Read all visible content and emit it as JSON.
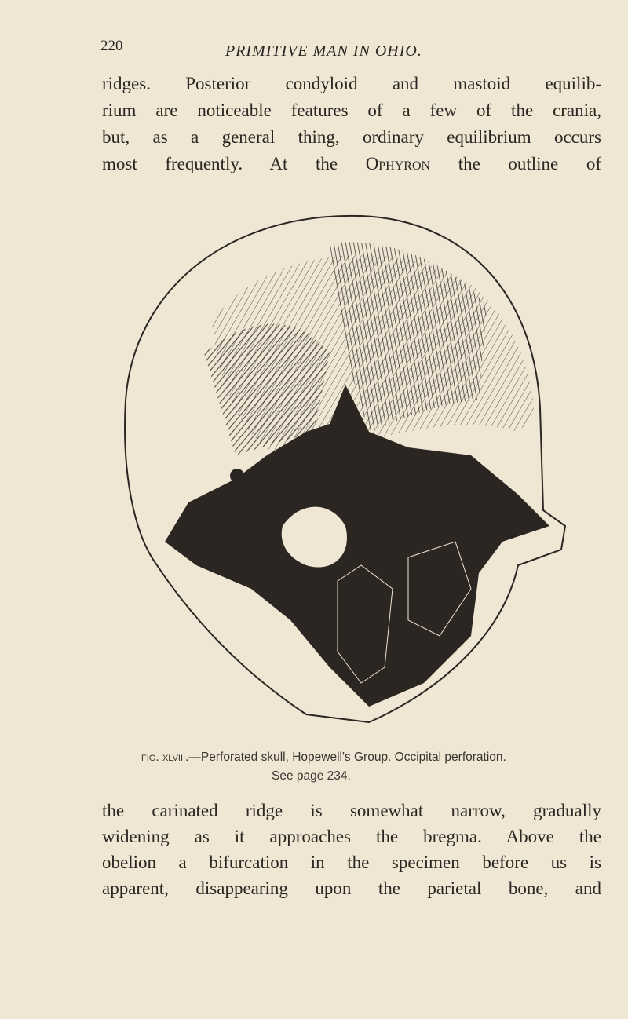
{
  "header": {
    "page_number": "220",
    "running_title": "PRIMITIVE MAN IN OHIO."
  },
  "paragraph_top": {
    "lines": [
      [
        "ridges. Posterior condyloid and mastoid equilib-"
      ],
      [
        "rium are noticeable features of a few of the crania,"
      ],
      [
        "but, as a general thing, ordinary equilibrium occurs"
      ],
      [
        "most frequently. At the",
        "Ophyron",
        "the outline of"
      ]
    ]
  },
  "figure": {
    "caption": {
      "label": "fig. xlviii.",
      "text": "—Perforated skull, Hopewell's Group. Occipital perforation.",
      "reference": "See page 234."
    }
  },
  "paragraph_bottom": {
    "lines": [
      [
        "the carinated ridge is somewhat narrow, gradually"
      ],
      [
        "widening as it approaches the bregma. Above the"
      ],
      [
        "obelion a bifurcation in the specimen before us is"
      ],
      [
        "apparent, disappearing upon the parietal bone, and"
      ]
    ]
  }
}
